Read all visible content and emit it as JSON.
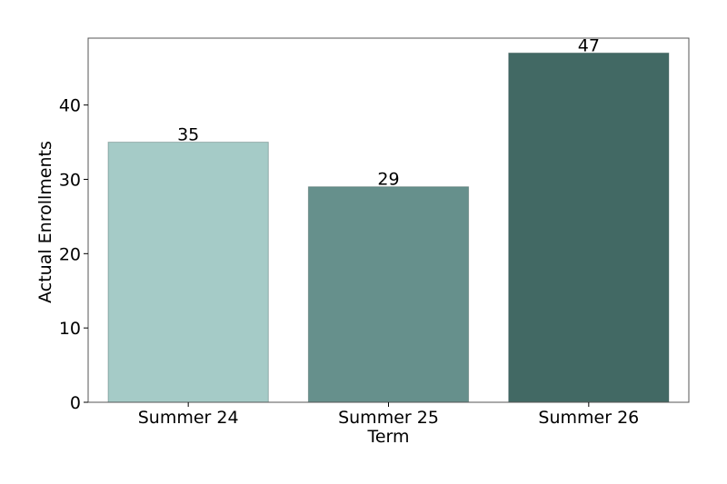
{
  "chart_data": {
    "type": "bar",
    "title": "",
    "xlabel": "Term",
    "ylabel": "Actual Enrollments",
    "categories": [
      "Summer 24",
      "Summer 25",
      "Summer 26"
    ],
    "values": [
      35,
      29,
      47
    ],
    "data_labels": [
      "35",
      "29",
      "47"
    ],
    "yticks": [
      0,
      10,
      20,
      30,
      40
    ],
    "ytick_labels": [
      "0",
      "10",
      "20",
      "30",
      "40"
    ],
    "ylim": [
      0,
      49
    ],
    "grid": false,
    "legend": "none",
    "colors": {
      "bars": [
        "#a5cbc7",
        "#66908c",
        "#426964"
      ],
      "bar_edge": "#2f4a47",
      "axes": "#555555",
      "text": "#000000",
      "background": "#ffffff"
    }
  }
}
